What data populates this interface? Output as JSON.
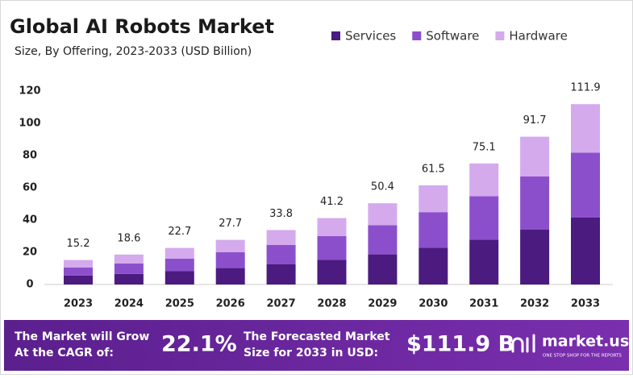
{
  "chart_data": {
    "type": "stacked_bar",
    "title": "Global AI Robots Market",
    "subtitle": "Size, By Offering, 2023-2033 (USD Billion)",
    "categories": [
      "2023",
      "2024",
      "2025",
      "2026",
      "2027",
      "2028",
      "2029",
      "2030",
      "2031",
      "2032",
      "2033"
    ],
    "series": [
      {
        "name": "Services",
        "color": "#4b1b7f",
        "values": [
          5.6,
          6.6,
          8.4,
          10.2,
          12.5,
          15.3,
          18.7,
          22.8,
          27.8,
          34.0,
          41.5
        ]
      },
      {
        "name": "Software",
        "color": "#8c4fcc",
        "values": [
          5.0,
          6.5,
          7.6,
          9.8,
          12.1,
          14.8,
          18.1,
          22.1,
          27.0,
          33.0,
          40.3
        ]
      },
      {
        "name": "Hardware",
        "color": "#d4aaed",
        "values": [
          4.6,
          5.5,
          6.7,
          7.7,
          9.2,
          11.1,
          13.6,
          16.6,
          20.3,
          24.7,
          30.1
        ]
      }
    ],
    "totals": [
      15.2,
      18.6,
      22.7,
      27.7,
      33.8,
      41.2,
      50.4,
      61.5,
      75.1,
      91.7,
      111.9
    ],
    "ylim": [
      0,
      120
    ],
    "yticks": [
      0,
      20,
      40,
      60,
      80,
      100,
      120
    ],
    "grid": false,
    "legend": "top-right"
  },
  "banner": {
    "cagr_text": [
      "The Market will Grow",
      "At the CAGR of:"
    ],
    "cagr_value": "22.1%",
    "forecast_text": [
      "The Forecasted Market",
      "Size for 2033 in USD:"
    ],
    "forecast_value": "$111.9 B",
    "brand": "market.us",
    "tagline": "ONE STOP SHOP FOR THE REPORTS"
  }
}
